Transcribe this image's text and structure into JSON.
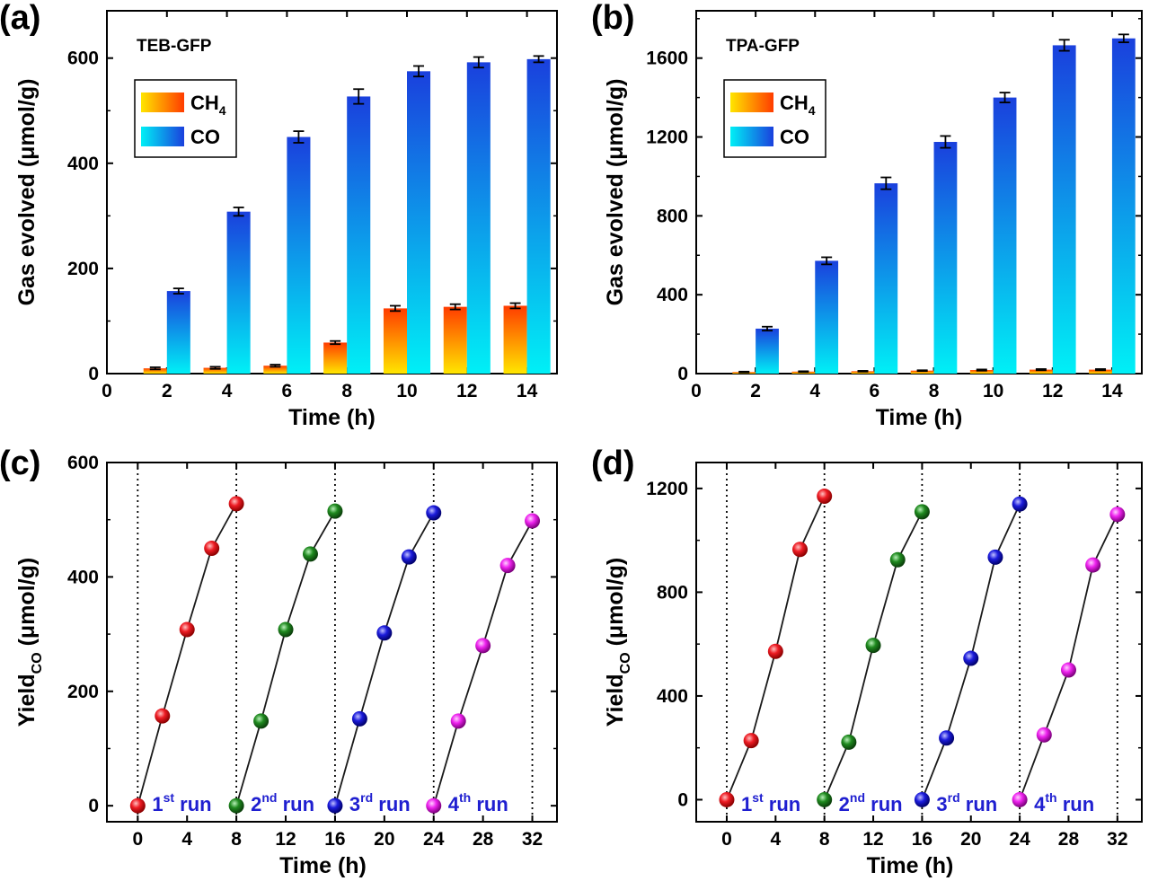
{
  "chart_data": [
    {
      "panel": "(a)",
      "type": "bar",
      "title": "TEB-GFP",
      "xlabel": "Time (h)",
      "ylabel": "Gas evolved (μmol/g)",
      "x": [
        2,
        4,
        6,
        8,
        10,
        12,
        14
      ],
      "xticks": [
        0,
        2,
        4,
        6,
        8,
        10,
        12,
        14
      ],
      "yticks": [
        0,
        200,
        400,
        600
      ],
      "xlim": [
        0,
        15
      ],
      "ylim": [
        0,
        690
      ],
      "series": [
        {
          "name": "CH4",
          "values": [
            10,
            11,
            15,
            59,
            124,
            127,
            129
          ],
          "errors": [
            2,
            2,
            2,
            3,
            5,
            5,
            5
          ],
          "colors": [
            "#ffe600",
            "#ff3c00"
          ]
        },
        {
          "name": "CO",
          "values": [
            157,
            308,
            450,
            527,
            575,
            592,
            598
          ],
          "errors": [
            5,
            8,
            11,
            14,
            10,
            10,
            6
          ],
          "colors": [
            "#00f0f6",
            "#1a40dd"
          ]
        }
      ],
      "legend_position": "top-left"
    },
    {
      "panel": "(b)",
      "type": "bar",
      "title": "TPA-GFP",
      "xlabel": "Time (h)",
      "ylabel": "Gas evolved (μmol/g)",
      "x": [
        2,
        4,
        6,
        8,
        10,
        12,
        14
      ],
      "xticks": [
        0,
        2,
        4,
        6,
        8,
        10,
        12,
        14
      ],
      "yticks": [
        0,
        400,
        800,
        1200,
        1600
      ],
      "xlim": [
        0,
        15
      ],
      "ylim": [
        0,
        1840
      ],
      "series": [
        {
          "name": "CH4",
          "values": [
            8,
            10,
            12,
            15,
            18,
            20,
            20
          ],
          "errors": [
            2,
            2,
            2,
            2,
            3,
            3,
            3
          ],
          "colors": [
            "#ffe600",
            "#ff3c00"
          ]
        },
        {
          "name": "CO",
          "values": [
            228,
            572,
            965,
            1175,
            1400,
            1665,
            1700
          ],
          "errors": [
            10,
            18,
            30,
            30,
            25,
            28,
            20
          ],
          "colors": [
            "#00f0f6",
            "#1a40dd"
          ]
        }
      ],
      "legend_position": "top-left"
    },
    {
      "panel": "(c)",
      "type": "line",
      "xlabel": "Time (h)",
      "ylabel": "Yield",
      "ylabel_sub": "CO",
      "ylabel_unit": "(μmol/g)",
      "xticks": [
        0,
        4,
        8,
        12,
        16,
        20,
        24,
        28,
        32
      ],
      "yticks": [
        0,
        200,
        400,
        600
      ],
      "xlim": [
        -2.5,
        34
      ],
      "ylim": [
        -28,
        600
      ],
      "run_boundaries": [
        0,
        8,
        16,
        24,
        32
      ],
      "series": [
        {
          "name": "1st run",
          "color": "#ee1c24",
          "x": [
            0,
            2,
            4,
            6,
            8
          ],
          "y": [
            0,
            157,
            308,
            450,
            528
          ]
        },
        {
          "name": "2nd run",
          "color": "#1f8a1f",
          "x": [
            8,
            10,
            12,
            14,
            16
          ],
          "y": [
            0,
            148,
            308,
            440,
            515
          ]
        },
        {
          "name": "3rd run",
          "color": "#1c1cdc",
          "x": [
            16,
            18,
            20,
            22,
            24
          ],
          "y": [
            0,
            152,
            302,
            435,
            512
          ]
        },
        {
          "name": "4th run",
          "color": "#ee22ee",
          "x": [
            24,
            26,
            28,
            30,
            32
          ],
          "y": [
            0,
            148,
            280,
            420,
            498
          ]
        }
      ]
    },
    {
      "panel": "(d)",
      "type": "line",
      "xlabel": "Time (h)",
      "ylabel": "Yield",
      "ylabel_sub": "CO",
      "ylabel_unit": "(μmol/g)",
      "xticks": [
        0,
        4,
        8,
        12,
        16,
        20,
        24,
        28,
        32
      ],
      "yticks": [
        0,
        400,
        800,
        1200
      ],
      "xlim": [
        -2.5,
        34
      ],
      "ylim": [
        -85,
        1300
      ],
      "run_boundaries": [
        0,
        8,
        16,
        24,
        32
      ],
      "series": [
        {
          "name": "1st run",
          "color": "#ee1c24",
          "x": [
            0,
            2,
            4,
            6,
            8
          ],
          "y": [
            0,
            228,
            572,
            965,
            1170
          ]
        },
        {
          "name": "2nd run",
          "color": "#1f8a1f",
          "x": [
            8,
            10,
            12,
            14,
            16
          ],
          "y": [
            0,
            222,
            595,
            925,
            1110
          ]
        },
        {
          "name": "3rd run",
          "color": "#1c1cdc",
          "x": [
            16,
            18,
            20,
            22,
            24
          ],
          "y": [
            0,
            238,
            545,
            935,
            1140
          ]
        },
        {
          "name": "4th run",
          "color": "#ee22ee",
          "x": [
            24,
            26,
            28,
            30,
            32
          ],
          "y": [
            0,
            250,
            500,
            905,
            1100
          ]
        }
      ]
    }
  ]
}
